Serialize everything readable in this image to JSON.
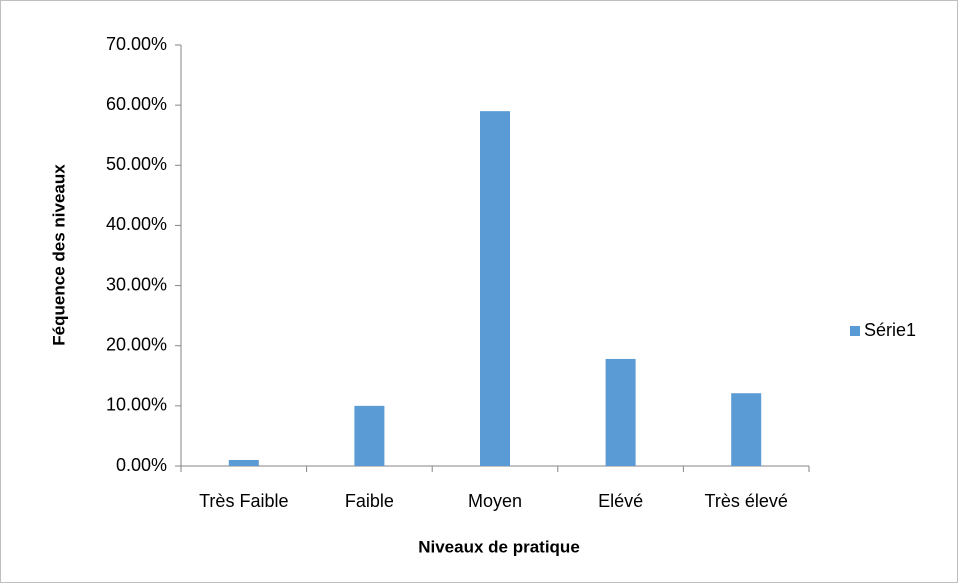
{
  "chart_data": {
    "type": "bar",
    "x_label": "Niveaux de pratique",
    "y_label": "Féquence des niveaux",
    "categories": [
      "Très Faible",
      "Faible",
      "Moyen",
      "Elévé",
      "Très élevé"
    ],
    "series": [
      {
        "name": "Série1",
        "color": "#5b9bd5",
        "values": [
          1,
          10,
          59,
          17.8,
          12.1
        ]
      }
    ],
    "ylim": [
      0,
      70
    ],
    "yticks": [
      {
        "value": 0,
        "label": "0.00%"
      },
      {
        "value": 10,
        "label": "10.00%"
      },
      {
        "value": 20,
        "label": "20.00%"
      },
      {
        "value": 30,
        "label": "30.00%"
      },
      {
        "value": 40,
        "label": "40.00%"
      },
      {
        "value": 50,
        "label": "50.00%"
      },
      {
        "value": 60,
        "label": "60.00%"
      },
      {
        "value": 70,
        "label": "70.00%"
      }
    ],
    "grid": false,
    "legend": "right"
  }
}
